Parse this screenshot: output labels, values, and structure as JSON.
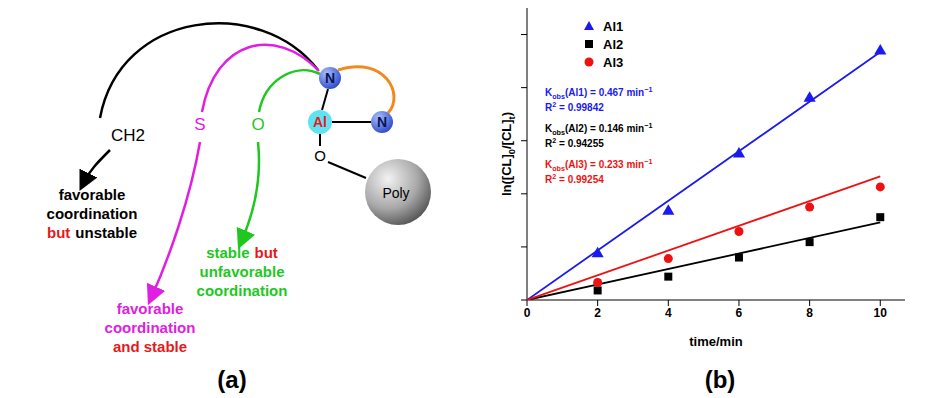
{
  "diagram": {
    "panel_label": "(a)",
    "center": {
      "donor_top": "N",
      "metal": "Al",
      "donor_right": "N",
      "linker": "O",
      "support": "Poly"
    },
    "groups": [
      {
        "atom": "CH2",
        "color": "#000000",
        "label": [
          [
            {
              "text": "favorable",
              "color": "#000000"
            }
          ],
          [
            {
              "text": "coordination",
              "color": "#000000"
            }
          ],
          [
            {
              "text": "but",
              "color": "#e41a1c"
            },
            {
              "text": "unstable",
              "color": "#000000"
            }
          ]
        ]
      },
      {
        "atom": "S",
        "color": "#e020e0",
        "label": [
          [
            {
              "text": "favorable",
              "color": "#e020e0"
            }
          ],
          [
            {
              "text": "coordination",
              "color": "#e020e0"
            }
          ],
          [
            {
              "text": "and stable",
              "color": "#e41a1c"
            }
          ]
        ]
      },
      {
        "atom": "O",
        "color": "#1ec81e",
        "label": [
          [
            {
              "text": "stable",
              "color": "#1ec81e"
            },
            {
              "text": "but",
              "color": "#e41a1c"
            }
          ],
          [
            {
              "text": "unfavorable",
              "color": "#1ec81e"
            }
          ],
          [
            {
              "text": "coordination",
              "color": "#1ec81e"
            }
          ]
        ]
      }
    ]
  },
  "chart_panel_label": "(b)",
  "chart_data": {
    "type": "scatter",
    "x_label": "time/min",
    "y_label": "ln([CL]0/[CL]t)",
    "xlim": [
      0,
      10.7
    ],
    "xticks": [
      0,
      2,
      4,
      6,
      8,
      10
    ],
    "ylim": [
      0,
      5.5
    ],
    "yticks": [
      0,
      1,
      2,
      3,
      4,
      5
    ],
    "tick_labels": "x",
    "grid": false,
    "legend": "upper left",
    "x": [
      2,
      4,
      6,
      8,
      10
    ],
    "series": [
      {
        "name": "Al1",
        "color": "#1a1aee",
        "marker": "triangle",
        "values": [
          0.87,
          1.67,
          2.75,
          3.8,
          4.69
        ],
        "fit_k": 0.467,
        "annotation": [
          "Kobs(Al1) = 0.467 min−1",
          "R2 = 0.99842"
        ]
      },
      {
        "name": "Al2",
        "color": "#000000",
        "marker": "square",
        "values": [
          0.18,
          0.44,
          0.8,
          1.09,
          1.56
        ],
        "fit_k": 0.146,
        "annotation": [
          "Kobs(Al2) = 0.146 min−1",
          "R2 = 0.94255"
        ]
      },
      {
        "name": "Al3",
        "color": "#ee1111",
        "marker": "circle",
        "values": [
          0.33,
          0.78,
          1.29,
          1.75,
          2.13
        ],
        "fit_k": 0.233,
        "annotation": [
          "Kobs(Al3) = 0.233 min−1",
          "R2 = 0.99254"
        ]
      }
    ]
  }
}
